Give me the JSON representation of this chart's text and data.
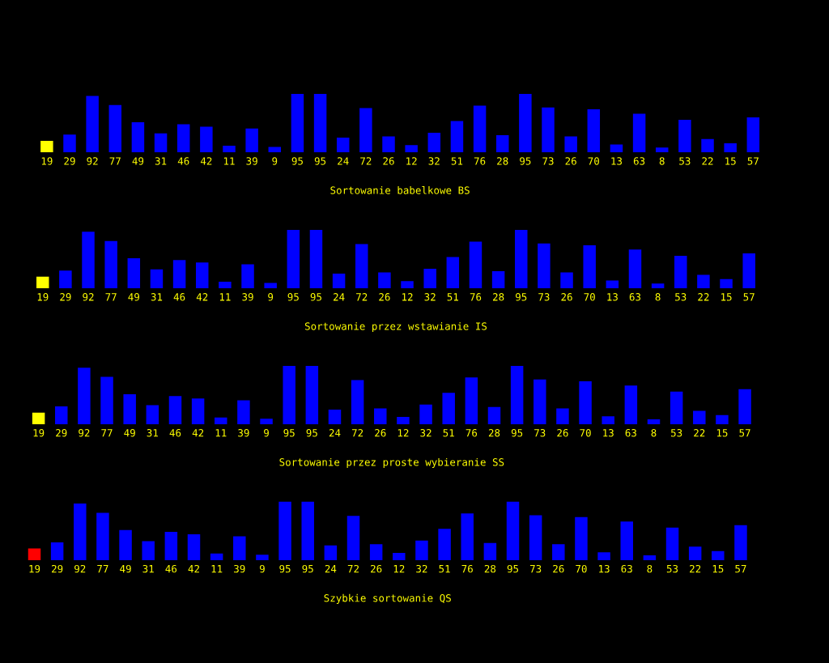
{
  "chart_data": [
    {
      "type": "bar",
      "xlabel": "Sortowanie babelkowe BS",
      "categories": [
        null,
        null,
        null,
        null,
        null,
        null,
        null,
        null,
        null,
        null,
        null,
        null,
        null,
        null,
        null,
        null,
        null,
        null,
        null,
        null,
        null,
        null,
        null,
        null,
        null,
        null,
        null,
        null,
        null,
        null,
        null,
        null
      ],
      "values": [
        19,
        29,
        92,
        77,
        49,
        31,
        46,
        42,
        11,
        39,
        9,
        95,
        95,
        24,
        72,
        26,
        12,
        32,
        51,
        76,
        28,
        95,
        73,
        26,
        70,
        13,
        63,
        8,
        53,
        22,
        15,
        57
      ],
      "colors": [
        "#ffff00",
        "#0000ff",
        "#0000ff",
        "#0000ff",
        "#0000ff",
        "#0000ff",
        "#0000ff",
        "#0000ff",
        "#0000ff",
        "#0000ff",
        "#0000ff",
        "#0000ff",
        "#0000ff",
        "#0000ff",
        "#0000ff",
        "#0000ff",
        "#0000ff",
        "#0000ff",
        "#0000ff",
        "#0000ff",
        "#0000ff",
        "#0000ff",
        "#0000ff",
        "#0000ff",
        "#0000ff",
        "#0000ff",
        "#0000ff",
        "#0000ff",
        "#0000ff",
        "#0000ff",
        "#0000ff",
        "#0000ff"
      ],
      "data_labels": true
    },
    {
      "type": "bar",
      "xlabel": "Sortowanie przez wstawianie IS",
      "categories": [
        null,
        null,
        null,
        null,
        null,
        null,
        null,
        null,
        null,
        null,
        null,
        null,
        null,
        null,
        null,
        null,
        null,
        null,
        null,
        null,
        null,
        null,
        null,
        null,
        null,
        null,
        null,
        null,
        null,
        null,
        null,
        null
      ],
      "values": [
        19,
        29,
        92,
        77,
        49,
        31,
        46,
        42,
        11,
        39,
        9,
        95,
        95,
        24,
        72,
        26,
        12,
        32,
        51,
        76,
        28,
        95,
        73,
        26,
        70,
        13,
        63,
        8,
        53,
        22,
        15,
        57
      ],
      "colors": [
        "#ffff00",
        "#0000ff",
        "#0000ff",
        "#0000ff",
        "#0000ff",
        "#0000ff",
        "#0000ff",
        "#0000ff",
        "#0000ff",
        "#0000ff",
        "#0000ff",
        "#0000ff",
        "#0000ff",
        "#0000ff",
        "#0000ff",
        "#0000ff",
        "#0000ff",
        "#0000ff",
        "#0000ff",
        "#0000ff",
        "#0000ff",
        "#0000ff",
        "#0000ff",
        "#0000ff",
        "#0000ff",
        "#0000ff",
        "#0000ff",
        "#0000ff",
        "#0000ff",
        "#0000ff",
        "#0000ff",
        "#0000ff"
      ],
      "data_labels": true
    },
    {
      "type": "bar",
      "xlabel": "Sortowanie przez proste wybieranie SS",
      "categories": [
        null,
        null,
        null,
        null,
        null,
        null,
        null,
        null,
        null,
        null,
        null,
        null,
        null,
        null,
        null,
        null,
        null,
        null,
        null,
        null,
        null,
        null,
        null,
        null,
        null,
        null,
        null,
        null,
        null,
        null,
        null,
        null
      ],
      "values": [
        19,
        29,
        92,
        77,
        49,
        31,
        46,
        42,
        11,
        39,
        9,
        95,
        95,
        24,
        72,
        26,
        12,
        32,
        51,
        76,
        28,
        95,
        73,
        26,
        70,
        13,
        63,
        8,
        53,
        22,
        15,
        57
      ],
      "colors": [
        "#ffff00",
        "#0000ff",
        "#0000ff",
        "#0000ff",
        "#0000ff",
        "#0000ff",
        "#0000ff",
        "#0000ff",
        "#0000ff",
        "#0000ff",
        "#0000ff",
        "#0000ff",
        "#0000ff",
        "#0000ff",
        "#0000ff",
        "#0000ff",
        "#0000ff",
        "#0000ff",
        "#0000ff",
        "#0000ff",
        "#0000ff",
        "#0000ff",
        "#0000ff",
        "#0000ff",
        "#0000ff",
        "#0000ff",
        "#0000ff",
        "#0000ff",
        "#0000ff",
        "#0000ff",
        "#0000ff",
        "#0000ff"
      ],
      "data_labels": true
    },
    {
      "type": "bar",
      "xlabel": "Szybkie sortowanie QS",
      "categories": [
        null,
        null,
        null,
        null,
        null,
        null,
        null,
        null,
        null,
        null,
        null,
        null,
        null,
        null,
        null,
        null,
        null,
        null,
        null,
        null,
        null,
        null,
        null,
        null,
        null,
        null,
        null,
        null,
        null,
        null,
        null,
        null
      ],
      "values": [
        19,
        29,
        92,
        77,
        49,
        31,
        46,
        42,
        11,
        39,
        9,
        95,
        95,
        24,
        72,
        26,
        12,
        32,
        51,
        76,
        28,
        95,
        73,
        26,
        70,
        13,
        63,
        8,
        53,
        22,
        15,
        57
      ],
      "colors": [
        "#ff0000",
        "#0000ff",
        "#0000ff",
        "#0000ff",
        "#0000ff",
        "#0000ff",
        "#0000ff",
        "#0000ff",
        "#0000ff",
        "#0000ff",
        "#0000ff",
        "#0000ff",
        "#0000ff",
        "#0000ff",
        "#0000ff",
        "#0000ff",
        "#0000ff",
        "#0000ff",
        "#0000ff",
        "#0000ff",
        "#0000ff",
        "#0000ff",
        "#0000ff",
        "#0000ff",
        "#0000ff",
        "#0000ff",
        "#0000ff",
        "#0000ff",
        "#0000ff",
        "#0000ff",
        "#0000ff",
        "#0000ff"
      ],
      "data_labels": true
    }
  ]
}
